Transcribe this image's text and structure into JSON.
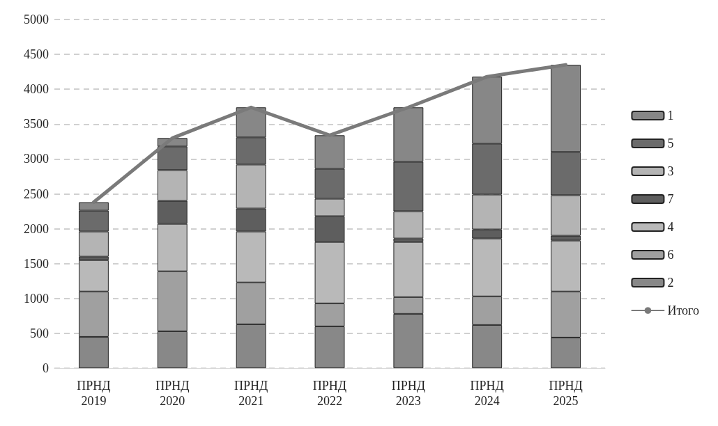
{
  "chart_data": {
    "type": "bar",
    "stacked": true,
    "categories": [
      "ПРНД 2019",
      "ПРНД 2020",
      "ПРНД 2021",
      "ПРНД 2022",
      "ПРНД 2023",
      "ПРНД 2024",
      "ПРНД 2025"
    ],
    "series": [
      {
        "name": "2",
        "color": "#888888",
        "values": [
          450,
          530,
          630,
          600,
          780,
          620,
          440
        ]
      },
      {
        "name": "6",
        "color": "#a0a0a0",
        "values": [
          650,
          860,
          600,
          330,
          240,
          410,
          660
        ]
      },
      {
        "name": "4",
        "color": "#b9b9b9",
        "values": [
          450,
          680,
          730,
          880,
          790,
          830,
          730
        ]
      },
      {
        "name": "7",
        "color": "#5e5e5e",
        "values": [
          50,
          330,
          330,
          370,
          50,
          130,
          70
        ]
      },
      {
        "name": "3",
        "color": "#b4b4b4",
        "values": [
          360,
          440,
          630,
          250,
          390,
          500,
          580
        ]
      },
      {
        "name": "5",
        "color": "#6b6b6b",
        "values": [
          300,
          340,
          390,
          430,
          710,
          730,
          620
        ]
      },
      {
        "name": "1",
        "color": "#878787",
        "values": [
          120,
          120,
          430,
          480,
          780,
          960,
          1250
        ]
      },
      {
        "name": "Итого",
        "type": "line",
        "color": "#7a7a7a",
        "values": [
          2380,
          3300,
          3740,
          3340,
          3740,
          4180,
          4350
        ]
      }
    ],
    "ylim": [
      0,
      5000
    ],
    "yticks": [
      0,
      500,
      1000,
      1500,
      2000,
      2500,
      3000,
      3500,
      4000,
      4500,
      5000
    ],
    "grid": "y",
    "legend": "right",
    "marker": "none"
  }
}
